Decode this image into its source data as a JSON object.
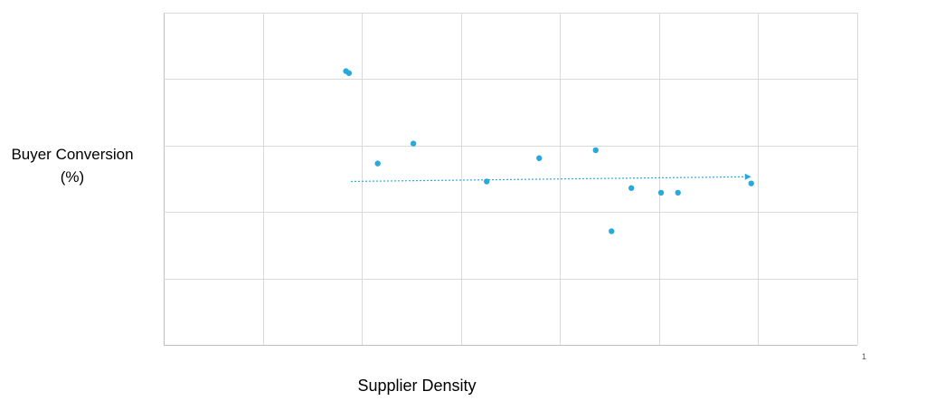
{
  "chart_data": {
    "type": "scatter",
    "title": "",
    "xlabel": "Supplier Density",
    "ylabel": "Buyer Conversion (%)",
    "xlim": [
      0,
      7
    ],
    "ylim": [
      0,
      5
    ],
    "grid": true,
    "tick_labels_visible": false,
    "corner_mark": "1",
    "points": [
      {
        "x": 1.84,
        "y": 4.12
      },
      {
        "x": 1.87,
        "y": 4.09
      },
      {
        "x": 2.16,
        "y": 2.73
      },
      {
        "x": 2.52,
        "y": 3.03
      },
      {
        "x": 3.26,
        "y": 2.46
      },
      {
        "x": 3.79,
        "y": 2.81
      },
      {
        "x": 4.36,
        "y": 2.93
      },
      {
        "x": 4.52,
        "y": 1.71
      },
      {
        "x": 4.72,
        "y": 2.36
      },
      {
        "x": 5.02,
        "y": 2.29
      },
      {
        "x": 5.19,
        "y": 2.29
      },
      {
        "x": 5.93,
        "y": 2.43
      }
    ],
    "trendline": {
      "style": "dotted",
      "x": [
        1.89,
        5.93
      ],
      "y": [
        2.46,
        2.53
      ]
    }
  },
  "colors": {
    "point": "#29a9d9",
    "trendline": "#29a9d9",
    "grid": "#d9d9d9",
    "axis": "#bfbfbf"
  }
}
